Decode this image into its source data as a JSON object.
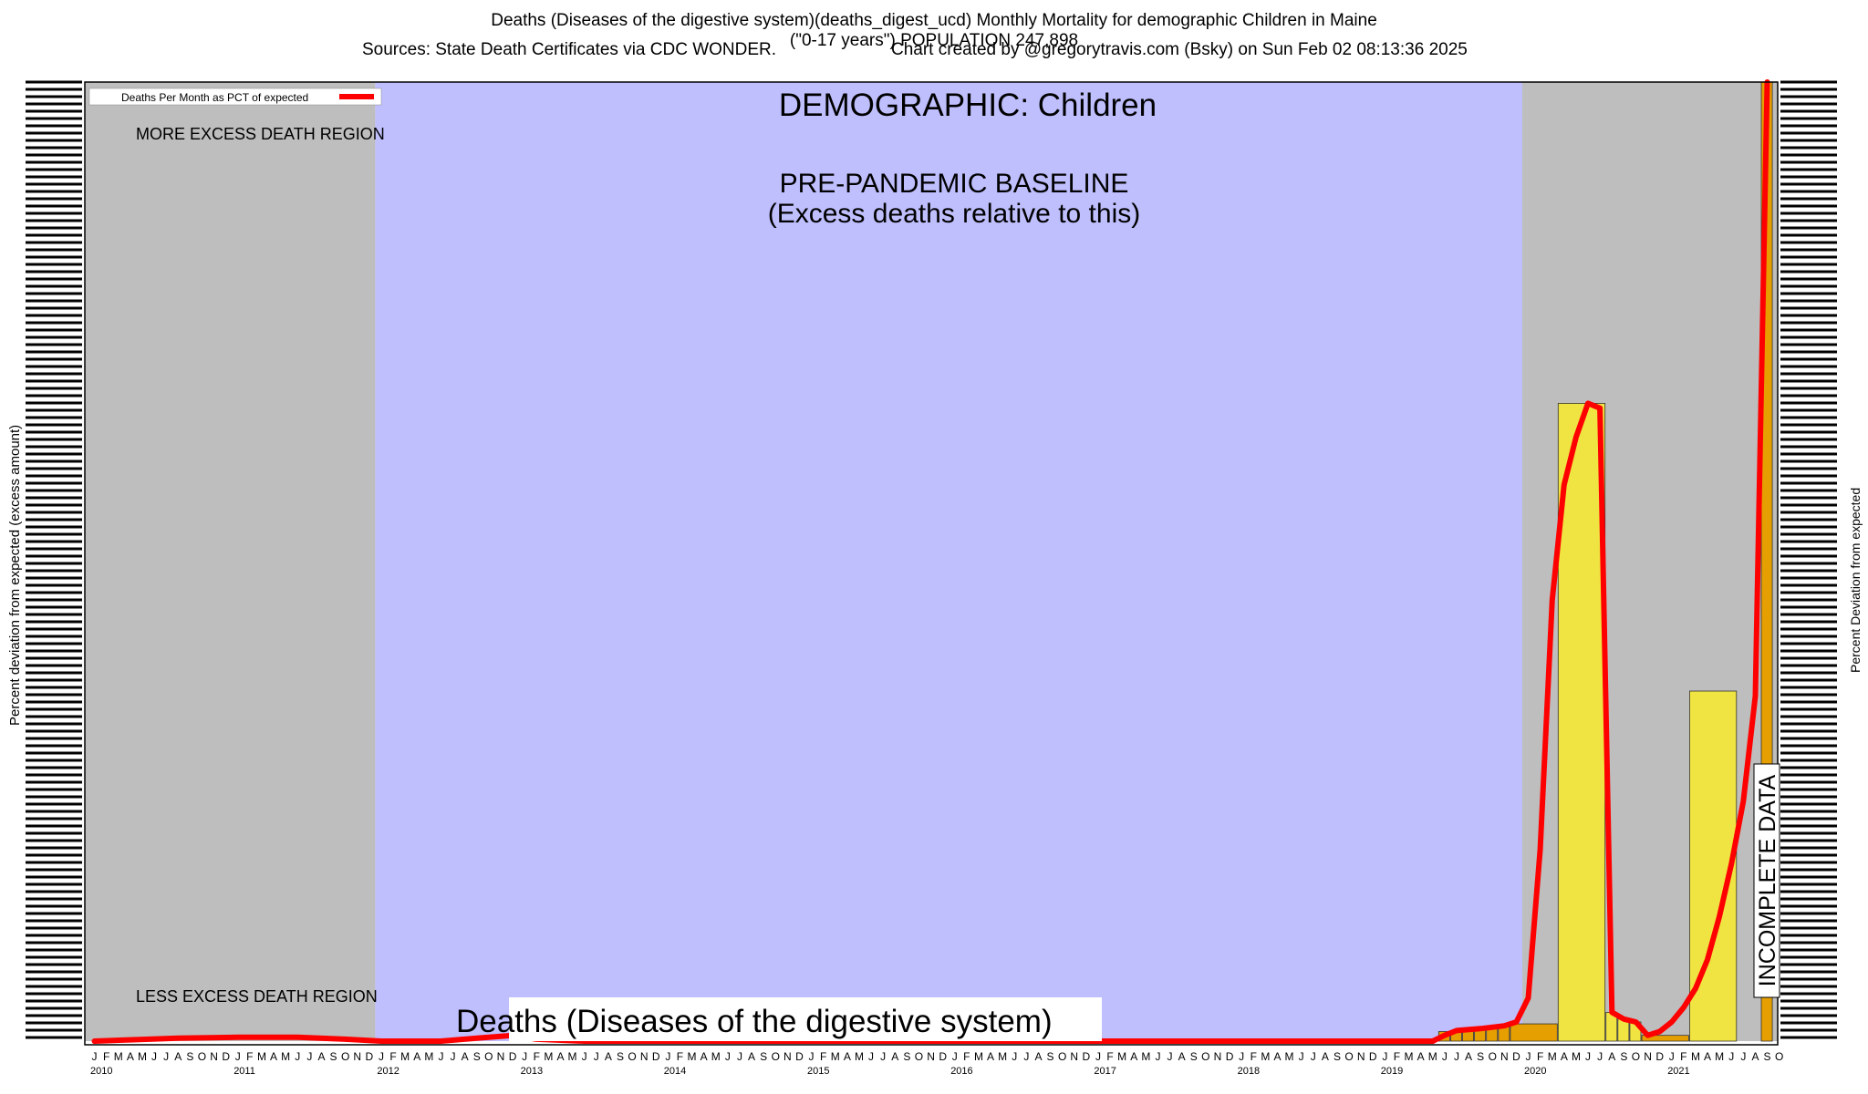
{
  "header": {
    "title_line1": "Deaths (Diseases of the digestive system)(deaths_digest_ucd) Monthly Mortality for demographic Children in Maine",
    "title_line2": "(\"0-17 years\") POPULATION 247,898",
    "sources": "Sources: State Death Certificates via CDC WONDER.",
    "credit": "Chart created by @gregorytravis.com (Bsky) on Sun Feb 02 08:13:36 2025"
  },
  "axes": {
    "left_label": "Percent deviation from expected (excess amount)",
    "right_label": "Percent Deviation from expected"
  },
  "legend": {
    "entry": "Deaths Per Month as PCT of expected",
    "color": "#ff0000"
  },
  "annotations": {
    "demographic": "DEMOGRAPHIC: Children",
    "baseline_line1": "PRE-PANDEMIC BASELINE",
    "baseline_line2": "(Excess deaths relative to this)",
    "more_region": "MORE EXCESS DEATH REGION",
    "less_region": "LESS EXCESS DEATH REGION",
    "cause_label": "Deaths (Diseases of the digestive system)",
    "incomplete": "INCOMPLETE DATA"
  },
  "colors": {
    "gray_region": "#bebebe",
    "baseline_region": "#bfbffe",
    "line": "#ff0000",
    "bar_yellow": "#f0e442",
    "bar_orange": "#e69f00"
  },
  "chart_data": {
    "type": "line",
    "title": "Deaths (Diseases of the digestive system)(deaths_digest_ucd) Monthly Mortality for demographic Children in Maine",
    "month_letters": [
      "J",
      "F",
      "M",
      "A",
      "M",
      "J",
      "J",
      "A",
      "S",
      "O",
      "N",
      "D"
    ],
    "years": [
      "2010",
      "2011",
      "2012",
      "2013",
      "2014",
      "2015",
      "2016",
      "2017",
      "2018",
      "2019",
      "2020",
      "2021"
    ],
    "last_month": "O",
    "ylim": [
      0,
      100
    ],
    "baseline_period": [
      "2012-01",
      "2019-12"
    ],
    "series": [
      {
        "name": "Deaths Per Month as PCT of expected",
        "points": [
          [
            "2010-01",
            0.0
          ],
          [
            "2010-08",
            0.3
          ],
          [
            "2011-01",
            0.4
          ],
          [
            "2011-06",
            0.4
          ],
          [
            "2011-10",
            0.2
          ],
          [
            "2012-01",
            0.0
          ],
          [
            "2012-06",
            0.0
          ],
          [
            "2012-09",
            0.3
          ],
          [
            "2012-12",
            0.6
          ],
          [
            "2013-02",
            0.2
          ],
          [
            "2013-06",
            0.0
          ],
          [
            "2019-05",
            0.0
          ],
          [
            "2019-06",
            0.6
          ],
          [
            "2019-07",
            1.1
          ],
          [
            "2019-09",
            1.3
          ],
          [
            "2019-11",
            1.6
          ],
          [
            "2019-12",
            2.0
          ],
          [
            "2020-01",
            4.5
          ],
          [
            "2020-02",
            20.0
          ],
          [
            "2020-03",
            46.0
          ],
          [
            "2020-04",
            58.0
          ],
          [
            "2020-05",
            63.0
          ],
          [
            "2020-06",
            66.5
          ],
          [
            "2020-07",
            66.0
          ],
          [
            "2020-08",
            3.0
          ],
          [
            "2020-09",
            2.3
          ],
          [
            "2020-10",
            2.0
          ],
          [
            "2020-11",
            0.6
          ],
          [
            "2020-12",
            1.0
          ],
          [
            "2021-01",
            2.0
          ],
          [
            "2021-02",
            3.5
          ],
          [
            "2021-03",
            5.5
          ],
          [
            "2021-04",
            8.5
          ],
          [
            "2021-05",
            13.0
          ],
          [
            "2021-06",
            18.5
          ],
          [
            "2021-07",
            25.0
          ],
          [
            "2021-08",
            36.0
          ],
          [
            "2021-09",
            100.0
          ]
        ]
      }
    ],
    "bars": [
      {
        "period": "2019-06",
        "value": 1.0,
        "color": "orange"
      },
      {
        "period": "2019-07",
        "value": 1.1,
        "color": "orange"
      },
      {
        "period": "2019-08",
        "value": 1.2,
        "color": "orange"
      },
      {
        "period": "2019-09",
        "value": 1.3,
        "color": "orange"
      },
      {
        "period": "2019-10",
        "value": 1.4,
        "color": "orange"
      },
      {
        "period": "2019-11",
        "value": 1.5,
        "color": "orange"
      },
      {
        "period": "2019-12 to 2020-03",
        "value": 1.8,
        "color": "orange"
      },
      {
        "period": "2020-04 to 2020-07",
        "value": 66.5,
        "color": "yellow"
      },
      {
        "period": "2020-08",
        "value": 3.0,
        "color": "yellow"
      },
      {
        "period": "2020-09",
        "value": 2.3,
        "color": "yellow"
      },
      {
        "period": "2020-10",
        "value": 2.0,
        "color": "yellow"
      },
      {
        "period": "2020-11 to 2021-02",
        "value": 0.6,
        "color": "orange"
      },
      {
        "period": "2021-03 to 2021-06",
        "value": 36.5,
        "color": "yellow"
      },
      {
        "period": "2021-09",
        "value": 100.0,
        "color": "orange"
      }
    ]
  }
}
